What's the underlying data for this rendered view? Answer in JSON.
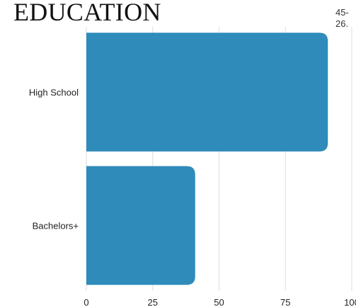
{
  "title": "EDUCATION",
  "side_note": {
    "line1": "45-",
    "line2": "26."
  },
  "colors": {
    "bar": "#2e8bba",
    "grid": "#dddddd",
    "text": "#222222"
  },
  "chart_data": {
    "type": "bar",
    "orientation": "horizontal",
    "title": "EDUCATION",
    "categories": [
      "High School",
      "Bachelors+"
    ],
    "values": [
      91,
      41
    ],
    "xlim": [
      0,
      100
    ],
    "xticks": [
      0,
      25,
      50,
      75,
      100
    ],
    "xtick_labels": [
      "0",
      "25",
      "50",
      "75",
      "100"
    ],
    "grid": true,
    "xlabel": "",
    "ylabel": ""
  }
}
